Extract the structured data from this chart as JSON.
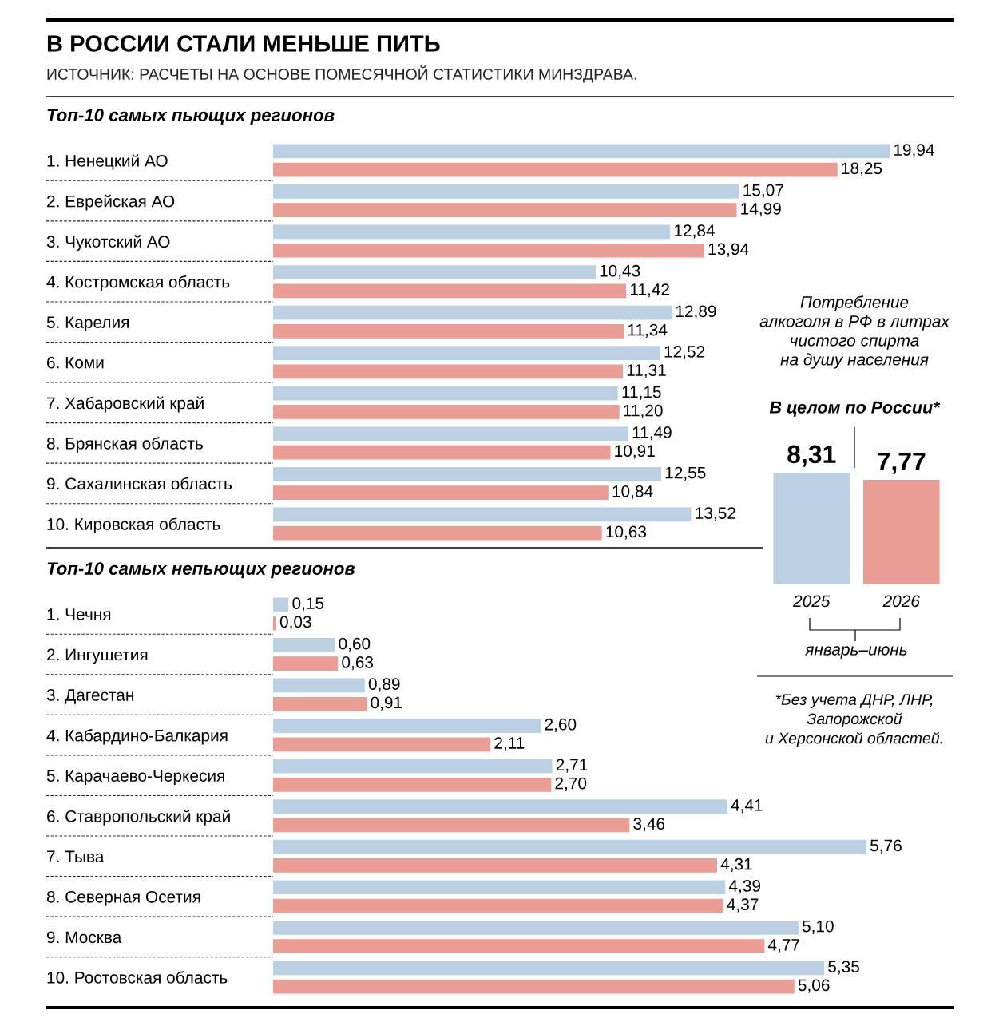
{
  "chart_data": [
    {
      "type": "bar",
      "orientation": "horizontal",
      "title": "В РОССИИ СТАЛИ МЕНЬШЕ ПИТЬ",
      "subtitle": "Топ-10 самых пьющих регионов",
      "annotations": [
        "ИСТОЧНИК: РАСЧЕТЫ НА ОСНОВЕ ПОМЕСЯЧНОЙ СТАТИСТИКИ МИНЗДРАВА."
      ],
      "tick_labels": "y",
      "categories": [
        "1. Ненецкий АО",
        "2. Еврейская АО",
        "3. Чукотский АО",
        "4. Костромская область",
        "5. Карелия",
        "6. Коми",
        "7. Хабаровский край",
        "8. Брянская область",
        "9. Сахалинская область",
        "10. Кировская область"
      ],
      "series": [
        {
          "color": "#bcd0e3",
          "values": [
            19.94,
            15.07,
            12.84,
            10.43,
            12.89,
            12.52,
            11.15,
            11.49,
            12.55,
            13.52
          ],
          "value_labels": [
            "19,94",
            "15,07",
            "12,84",
            "10,43",
            "12,89",
            "12,52",
            "11,15",
            "11,49",
            "12,55",
            "13,52"
          ]
        },
        {
          "color": "#e99d94",
          "values": [
            18.25,
            14.99,
            13.94,
            11.42,
            11.34,
            11.31,
            11.2,
            10.91,
            10.84,
            10.63
          ],
          "value_labels": [
            "18,25",
            "14,99",
            "13,94",
            "11,42",
            "11,34",
            "11,31",
            "11,20",
            "10,91",
            "10,84",
            "10,63"
          ]
        }
      ]
    },
    {
      "type": "bar",
      "orientation": "horizontal",
      "title": "Топ-10 самых непьющих регионов",
      "tick_labels": "y",
      "categories": [
        "1. Чечня",
        "2. Ингушетия",
        "3. Дагестан",
        "4. Кабардино-Балкария",
        "5. Карачаево-Черкесия",
        "6. Ставропольский край",
        "7. Тыва",
        "8. Северная Осетия",
        "9. Москва",
        "10. Ростовская область"
      ],
      "series": [
        {
          "color": "#bcd0e3",
          "values": [
            0.15,
            0.6,
            0.89,
            2.6,
            2.71,
            4.41,
            5.76,
            4.39,
            5.1,
            5.35
          ],
          "value_labels": [
            "0,15",
            "0,60",
            "0,89",
            "2,60",
            "2,71",
            "4,41",
            "5,76",
            "4,39",
            "5,10",
            "5,35"
          ]
        },
        {
          "color": "#e99d94",
          "values": [
            0.03,
            0.63,
            0.91,
            2.11,
            2.7,
            3.46,
            4.31,
            4.37,
            4.77,
            5.06
          ],
          "value_labels": [
            "0,03",
            "0,63",
            "0,91",
            "2,11",
            "2,70",
            "3,46",
            "4,31",
            "4,37",
            "4,77",
            "5,06"
          ]
        }
      ]
    },
    {
      "type": "bar",
      "title": "Потребление\nалкоголя в РФ в литрах\nчистого спирта\nна душу населения",
      "subtitle": "В целом по России*",
      "xlabel": "январь–июнь",
      "annotations": [
        "*Без учета ДНР, ЛНР,\nЗапорожской\nи Херсонской областей."
      ],
      "tick_labels": "x",
      "categories": [
        "2025",
        "2026"
      ],
      "values": [
        8.31,
        7.77
      ],
      "colors": [
        "#bcd0e3",
        "#e99d94"
      ],
      "value_labels": [
        "8,31",
        "7,77"
      ]
    }
  ]
}
